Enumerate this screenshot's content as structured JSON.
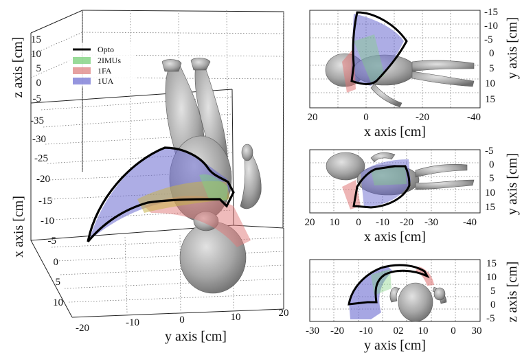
{
  "chart_data": [
    {
      "type": "3d-surface",
      "xlabel": "x axis [cm]",
      "ylabel": "y axis [cm]",
      "zlabel": "z axis [cm]",
      "x_ticks": [
        "-35",
        "-30",
        "-25",
        "-20",
        "-15",
        "-10",
        "-5",
        "0",
        "5",
        "10"
      ],
      "y_ticks": [
        "-20",
        "-10",
        "0",
        "10",
        "20"
      ],
      "z_ticks": [
        "15",
        "10",
        "5",
        "0",
        "-5"
      ],
      "legend": {
        "placement": "top-left",
        "entries": [
          {
            "label": "Opto",
            "color": "#000000",
            "style": "line"
          },
          {
            "label": "2IMUs",
            "color": "#7fd27f",
            "style": "patch"
          },
          {
            "label": "1FA",
            "color": "#e08a8a",
            "style": "patch"
          },
          {
            "label": "1UA",
            "color": "#7b7bd6",
            "style": "patch"
          }
        ]
      }
    },
    {
      "type": "2d-projection",
      "xlabel": "x axis [cm]",
      "ylabel": "y axis [cm]",
      "x_ticks": [
        "20",
        "0",
        "-20",
        "-40"
      ],
      "y_ticks": [
        "-15",
        "-10",
        "-5",
        "0",
        "5",
        "10",
        "15"
      ]
    },
    {
      "type": "2d-projection",
      "xlabel": "x axis [cm]",
      "ylabel": "y axis [cm]",
      "x_ticks": [
        "20",
        "10",
        "0",
        "-10",
        "-20",
        "-30",
        "-40"
      ],
      "y_ticks": [
        "-5",
        "0",
        "5",
        "10",
        "15"
      ]
    },
    {
      "type": "2d-projection",
      "xlabel": "y axis [cm]",
      "ylabel": "z axis [cm]",
      "x_ticks": [
        "-30",
        "-20",
        "-10",
        "02",
        "10",
        "0",
        "30"
      ],
      "y_ticks": [
        "15",
        "10",
        "5",
        "0",
        "-5"
      ]
    }
  ],
  "colors": {
    "opto": "#000000",
    "imus": "#7fd27f",
    "fa": "#e08a8a",
    "ua": "#7b7bd6",
    "body": "#a9a9a9"
  }
}
